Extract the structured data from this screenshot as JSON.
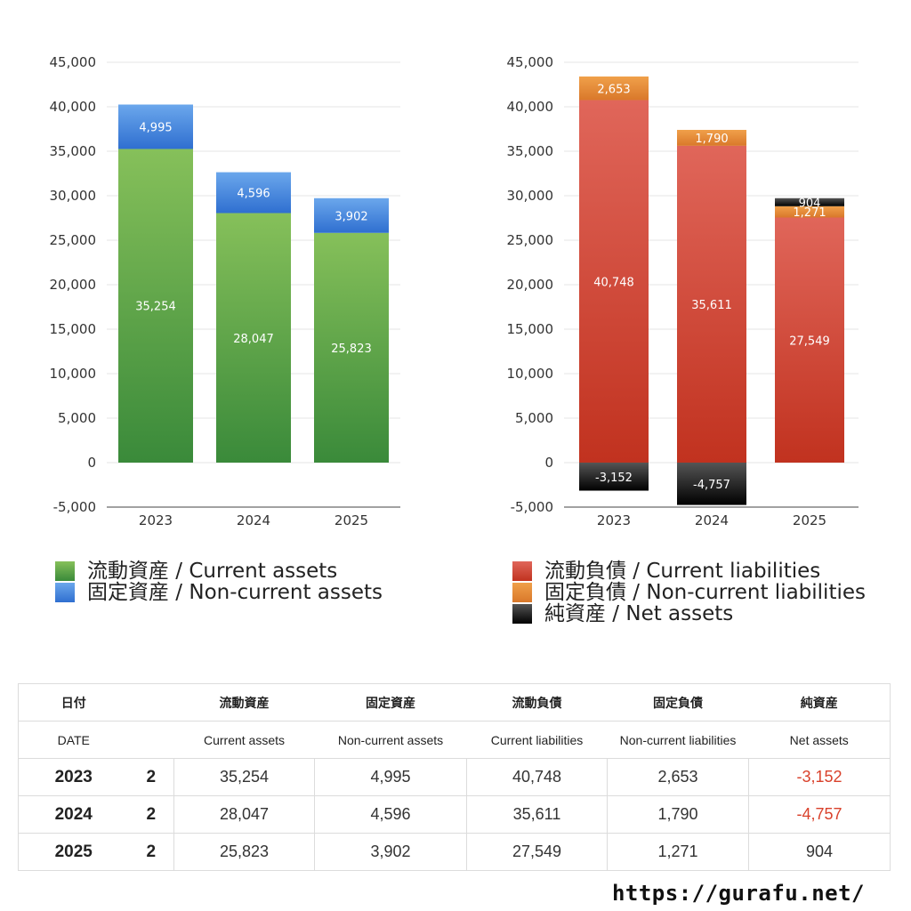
{
  "chart_data": [
    {
      "type": "bar",
      "stacked": true,
      "categories": [
        "2023",
        "2024",
        "2025"
      ],
      "ylim": [
        -5000,
        45000
      ],
      "yticks": [
        "45,000",
        "40,000",
        "35,000",
        "30,000",
        "25,000",
        "20,000",
        "15,000",
        "10,000",
        "5,000",
        "0",
        "-5,000"
      ],
      "grid": true,
      "series": [
        {
          "name": "流動資産 / Current assets",
          "values": [
            35254,
            28047,
            25823
          ],
          "labels": [
            "35,254",
            "28,047",
            "25,823"
          ],
          "color_top": "#86c05a",
          "color_bottom": "#3a8a3a"
        },
        {
          "name": "固定資産 / Non-current assets",
          "values": [
            4995,
            4596,
            3902
          ],
          "labels": [
            "4,995",
            "4,596",
            "3,902"
          ],
          "color_top": "#6ba7ec",
          "color_bottom": "#2f6fd0"
        }
      ]
    },
    {
      "type": "bar",
      "stacked": true,
      "categories": [
        "2023",
        "2024",
        "2025"
      ],
      "ylim": [
        -5000,
        45000
      ],
      "yticks": [
        "45,000",
        "40,000",
        "35,000",
        "30,000",
        "25,000",
        "20,000",
        "15,000",
        "10,000",
        "5,000",
        "0",
        "-5,000"
      ],
      "grid": true,
      "series": [
        {
          "name": "流動負債 / Current liabilities",
          "values": [
            40748,
            35611,
            27549
          ],
          "labels": [
            "40,748",
            "35,611",
            "27,549"
          ],
          "color_top": "#e0665a",
          "color_bottom": "#c1321f"
        },
        {
          "name": "固定負債 / Non-current liabilities",
          "values": [
            2653,
            1790,
            1271
          ],
          "labels": [
            "2,653",
            "1,790",
            "1,271"
          ],
          "color_top": "#f0a04a",
          "color_bottom": "#d9782a"
        },
        {
          "name": "純資産 / Net assets",
          "values": [
            -3152,
            -4757,
            904
          ],
          "labels": [
            "-3,152",
            "-4,757",
            "904"
          ],
          "color_top": "#555555",
          "color_bottom": "#000000"
        }
      ]
    }
  ],
  "table": {
    "header_jp": [
      "日付",
      "",
      "流動資産",
      "固定資産",
      "流動負債",
      "固定負債",
      "純資産"
    ],
    "header_en": [
      "DATE",
      "",
      "Current assets",
      "Non-current assets",
      "Current liabilities",
      "Non-current liabilities",
      "Net assets"
    ],
    "rows": [
      {
        "year": "2023",
        "count": "2",
        "ca": "35,254",
        "nca": "4,995",
        "cl": "40,748",
        "ncl": "2,653",
        "na": "-3,152"
      },
      {
        "year": "2024",
        "count": "2",
        "ca": "28,047",
        "nca": "4,596",
        "cl": "35,611",
        "ncl": "1,790",
        "na": "-4,757"
      },
      {
        "year": "2025",
        "count": "2",
        "ca": "25,823",
        "nca": "3,902",
        "cl": "27,549",
        "ncl": "1,271",
        "na": "904"
      }
    ]
  },
  "source_url": "https://gurafu.net/"
}
